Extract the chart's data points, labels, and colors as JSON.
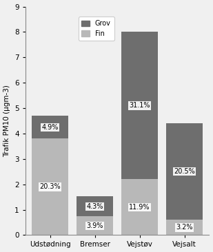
{
  "categories": [
    "Udstødning",
    "Bremser",
    "Vejstøv",
    "Vejsalt"
  ],
  "fin_values": [
    3.8,
    0.73,
    2.2,
    0.6
  ],
  "grov_values": [
    0.9,
    0.8,
    5.8,
    3.8
  ],
  "fin_labels": [
    "20.3%",
    "3.9%",
    "11.9%",
    "3.2%"
  ],
  "grov_labels": [
    "4.9%",
    "4.3%",
    "31.1%",
    "20.5%"
  ],
  "fin_color": "#b8b8b8",
  "grov_color": "#6e6e6e",
  "ylabel": "Trafik PM10 (µgm-3)",
  "ylim": [
    0,
    9
  ],
  "yticks": [
    0,
    1,
    2,
    3,
    4,
    5,
    6,
    7,
    8,
    9
  ],
  "legend_labels": [
    "Grov",
    "Fin"
  ],
  "legend_colors": [
    "#6e6e6e",
    "#b8b8b8"
  ],
  "label_fontsize": 7.5,
  "annotation_fontsize": 7.0,
  "background_color": "#f0f0f0"
}
